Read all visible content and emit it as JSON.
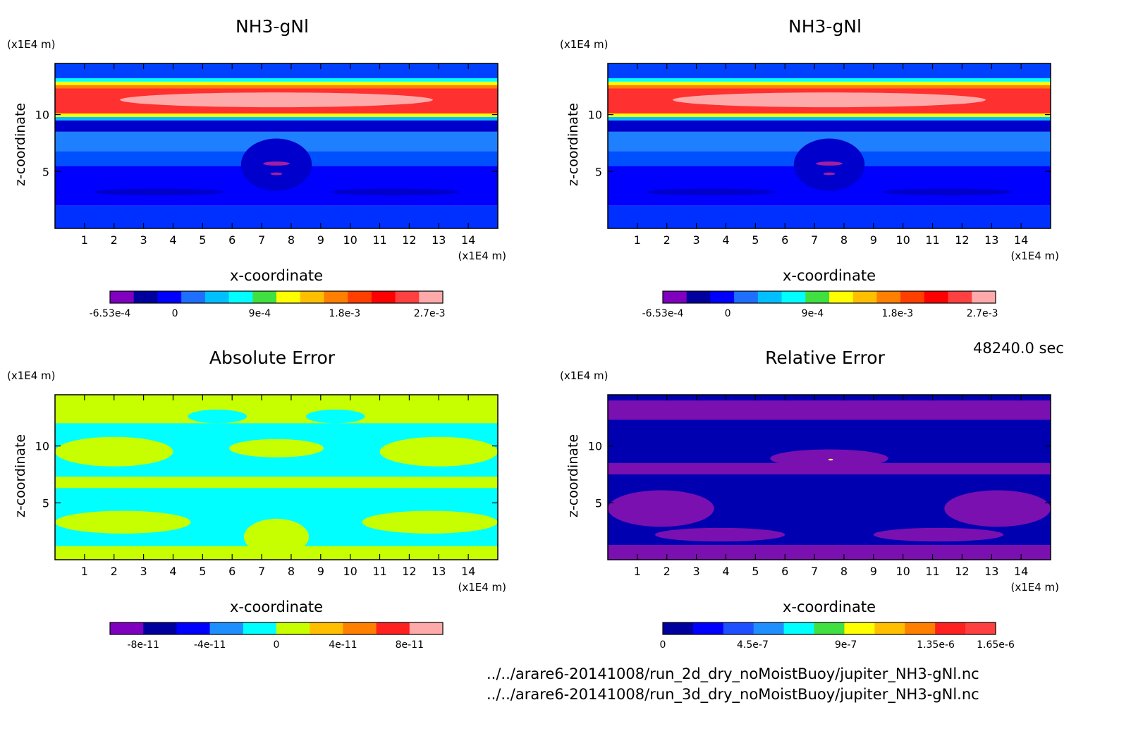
{
  "chart_data": [
    {
      "type": "heatmap",
      "title": "NH3-gNl",
      "xlabel": "x-coordinate",
      "ylabel": "z-coordinate",
      "x_unit": "(x1E4 m)",
      "y_unit": "(x1E4 m)",
      "xlim": [
        0,
        15
      ],
      "ylim": [
        0,
        14.5
      ],
      "x_ticks": [
        1,
        2,
        3,
        4,
        5,
        6,
        7,
        8,
        9,
        10,
        11,
        12,
        13,
        14
      ],
      "y_ticks": [
        5,
        10
      ],
      "colorbar_colors": [
        "#7f00bf",
        "#00009f",
        "#0000ff",
        "#1f6fff",
        "#00bfff",
        "#00ffff",
        "#40e040",
        "#ffff00",
        "#ffbf00",
        "#ff7f00",
        "#ff3f00",
        "#ff0000",
        "#ff4040",
        "#ffaaaa"
      ],
      "colorbar_ticks": [
        {
          "label": "-6.53e-4",
          "pos": 0.0
        },
        {
          "label": "0",
          "pos": 0.195
        },
        {
          "label": "9e-4",
          "pos": 0.45
        },
        {
          "label": "1.8e-3",
          "pos": 0.705
        },
        {
          "label": "2.7e-3",
          "pos": 0.96
        }
      ],
      "bands": [
        {
          "z": [
            0,
            2
          ],
          "color": "#0030ff"
        },
        {
          "z": [
            2,
            5.5
          ],
          "color": "#0000ff"
        },
        {
          "z": [
            5.5,
            6.8
          ],
          "color": "#0050ff"
        },
        {
          "z": [
            6.8,
            8.5
          ],
          "color": "#1f80ff"
        },
        {
          "z": [
            8.5,
            9.5
          ],
          "color": "#0000cc"
        },
        {
          "z": [
            9.5,
            9.8
          ],
          "color": "#00bfff"
        },
        {
          "z": [
            9.8,
            10.1
          ],
          "color": "#ffff00"
        },
        {
          "z": [
            10.1,
            12.3
          ],
          "color": "#ff3030"
        },
        {
          "z": [
            12.3,
            12.6
          ],
          "color": "#ff7f00"
        },
        {
          "z": [
            12.6,
            12.9
          ],
          "color": "#ffff00"
        },
        {
          "z": [
            12.9,
            13.2
          ],
          "color": "#00ffff"
        },
        {
          "z": [
            13.2,
            14.5
          ],
          "color": "#0040ff"
        }
      ],
      "blobs": [
        {
          "x": 7.5,
          "z": 11.3,
          "rx": 5.3,
          "rz": 0.65,
          "color": "#ffaaaa"
        },
        {
          "x": 7.5,
          "z": 5.6,
          "rx": 1.2,
          "rz": 2.3,
          "color": "#0000cc"
        },
        {
          "x": 7.5,
          "z": 5.7,
          "rx": 0.45,
          "rz": 0.18,
          "color": "#a020a0"
        },
        {
          "x": 7.5,
          "z": 4.8,
          "rx": 0.2,
          "rz": 0.12,
          "color": "#a020a0"
        },
        {
          "x": 3.5,
          "z": 3.2,
          "rx": 2.2,
          "rz": 0.3,
          "color": "#0000cc"
        },
        {
          "x": 11.5,
          "z": 3.2,
          "rx": 2.2,
          "rz": 0.3,
          "color": "#0000cc"
        }
      ]
    },
    {
      "type": "heatmap",
      "title": "NH3-gNl",
      "xlabel": "x-coordinate",
      "ylabel": "z-coordinate",
      "x_unit": "(x1E4 m)",
      "y_unit": "(x1E4 m)",
      "xlim": [
        0,
        15
      ],
      "ylim": [
        0,
        14.5
      ],
      "x_ticks": [
        1,
        2,
        3,
        4,
        5,
        6,
        7,
        8,
        9,
        10,
        11,
        12,
        13,
        14
      ],
      "y_ticks": [
        5,
        10
      ],
      "colorbar_colors": [
        "#7f00bf",
        "#00009f",
        "#0000ff",
        "#1f6fff",
        "#00bfff",
        "#00ffff",
        "#40e040",
        "#ffff00",
        "#ffbf00",
        "#ff7f00",
        "#ff3f00",
        "#ff0000",
        "#ff4040",
        "#ffaaaa"
      ],
      "colorbar_ticks": [
        {
          "label": "-6.53e-4",
          "pos": 0.0
        },
        {
          "label": "0",
          "pos": 0.195
        },
        {
          "label": "9e-4",
          "pos": 0.45
        },
        {
          "label": "1.8e-3",
          "pos": 0.705
        },
        {
          "label": "2.7e-3",
          "pos": 0.96
        }
      ],
      "bands": [
        {
          "z": [
            0,
            2
          ],
          "color": "#0030ff"
        },
        {
          "z": [
            2,
            5.5
          ],
          "color": "#0000ff"
        },
        {
          "z": [
            5.5,
            6.8
          ],
          "color": "#0050ff"
        },
        {
          "z": [
            6.8,
            8.5
          ],
          "color": "#1f80ff"
        },
        {
          "z": [
            8.5,
            9.5
          ],
          "color": "#0000cc"
        },
        {
          "z": [
            9.5,
            9.8
          ],
          "color": "#00bfff"
        },
        {
          "z": [
            9.8,
            10.1
          ],
          "color": "#ffff00"
        },
        {
          "z": [
            10.1,
            12.3
          ],
          "color": "#ff3030"
        },
        {
          "z": [
            12.3,
            12.6
          ],
          "color": "#ff7f00"
        },
        {
          "z": [
            12.6,
            12.9
          ],
          "color": "#ffff00"
        },
        {
          "z": [
            12.9,
            13.2
          ],
          "color": "#00ffff"
        },
        {
          "z": [
            13.2,
            14.5
          ],
          "color": "#0040ff"
        }
      ],
      "blobs": [
        {
          "x": 7.5,
          "z": 11.3,
          "rx": 5.3,
          "rz": 0.65,
          "color": "#ffaaaa"
        },
        {
          "x": 7.5,
          "z": 5.6,
          "rx": 1.2,
          "rz": 2.3,
          "color": "#0000cc"
        },
        {
          "x": 7.5,
          "z": 5.7,
          "rx": 0.45,
          "rz": 0.18,
          "color": "#a020a0"
        },
        {
          "x": 7.5,
          "z": 4.8,
          "rx": 0.2,
          "rz": 0.12,
          "color": "#a020a0"
        },
        {
          "x": 3.5,
          "z": 3.2,
          "rx": 2.2,
          "rz": 0.3,
          "color": "#0000cc"
        },
        {
          "x": 11.5,
          "z": 3.2,
          "rx": 2.2,
          "rz": 0.3,
          "color": "#0000cc"
        }
      ]
    },
    {
      "type": "heatmap",
      "title": "Absolute Error",
      "xlabel": "x-coordinate",
      "ylabel": "z-coordinate",
      "x_unit": "(x1E4 m)",
      "y_unit": "(x1E4 m)",
      "xlim": [
        0,
        15
      ],
      "ylim": [
        0,
        14.5
      ],
      "x_ticks": [
        1,
        2,
        3,
        4,
        5,
        6,
        7,
        8,
        9,
        10,
        11,
        12,
        13,
        14
      ],
      "y_ticks": [
        5,
        10
      ],
      "colorbar_colors": [
        "#7f00bf",
        "#00009f",
        "#0000ff",
        "#1f8fff",
        "#00ffff",
        "#c8ff00",
        "#ffbf00",
        "#ff7f00",
        "#ff2020",
        "#ffaaaa"
      ],
      "colorbar_ticks": [
        {
          "label": "-8e-11",
          "pos": 0.1
        },
        {
          "label": "-4e-11",
          "pos": 0.3
        },
        {
          "label": "0",
          "pos": 0.5
        },
        {
          "label": "4e-11",
          "pos": 0.7
        },
        {
          "label": "8e-11",
          "pos": 0.9
        }
      ],
      "bands": [
        {
          "z": [
            0,
            14.5
          ],
          "color": "#00ffff"
        },
        {
          "z": [
            12.0,
            14.5
          ],
          "color": "#c8ff00"
        },
        {
          "z": [
            6.3,
            7.3
          ],
          "color": "#c8ff00"
        },
        {
          "z": [
            0,
            1.2
          ],
          "color": "#c8ff00"
        }
      ],
      "blobs": [
        {
          "x": 2.0,
          "z": 9.5,
          "rx": 2.0,
          "rz": 1.3,
          "color": "#c8ff00"
        },
        {
          "x": 13.0,
          "z": 9.5,
          "rx": 2.0,
          "rz": 1.3,
          "color": "#c8ff00"
        },
        {
          "x": 7.5,
          "z": 9.8,
          "rx": 1.6,
          "rz": 0.8,
          "color": "#c8ff00"
        },
        {
          "x": 2.3,
          "z": 3.3,
          "rx": 2.3,
          "rz": 1.0,
          "color": "#c8ff00"
        },
        {
          "x": 12.7,
          "z": 3.3,
          "rx": 2.3,
          "rz": 1.0,
          "color": "#c8ff00"
        },
        {
          "x": 7.5,
          "z": 2.0,
          "rx": 1.1,
          "rz": 1.6,
          "color": "#c8ff00"
        },
        {
          "x": 5.5,
          "z": 12.6,
          "rx": 1.0,
          "rz": 0.6,
          "color": "#00ffff"
        },
        {
          "x": 9.5,
          "z": 12.6,
          "rx": 1.0,
          "rz": 0.6,
          "color": "#00ffff"
        }
      ]
    },
    {
      "type": "heatmap",
      "title": "Relative Error",
      "xlabel": "x-coordinate",
      "ylabel": "z-coordinate",
      "x_unit": "(x1E4 m)",
      "y_unit": "(x1E4 m)",
      "xlim": [
        0,
        15
      ],
      "ylim": [
        0,
        14.5
      ],
      "x_ticks": [
        1,
        2,
        3,
        4,
        5,
        6,
        7,
        8,
        9,
        10,
        11,
        12,
        13,
        14
      ],
      "y_ticks": [
        5,
        10
      ],
      "colorbar_colors": [
        "#00009f",
        "#0000ff",
        "#1f50ff",
        "#1f8fff",
        "#00ffff",
        "#40e040",
        "#ffff00",
        "#ffbf00",
        "#ff7f00",
        "#ff2020",
        "#ff4040"
      ],
      "colorbar_ticks": [
        {
          "label": "0",
          "pos": 0.0
        },
        {
          "label": "4.5e-7",
          "pos": 0.27
        },
        {
          "label": "9e-7",
          "pos": 0.55
        },
        {
          "label": "1.35e-6",
          "pos": 0.82
        },
        {
          "label": "1.65e-6",
          "pos": 1.0
        }
      ],
      "bands": [
        {
          "z": [
            0,
            14.5
          ],
          "color": "#0000b0"
        },
        {
          "z": [
            12.3,
            14.0
          ],
          "color": "#7a10b0"
        },
        {
          "z": [
            7.5,
            8.5
          ],
          "color": "#7a10b0"
        },
        {
          "z": [
            0,
            1.3
          ],
          "color": "#7a10b0"
        }
      ],
      "blobs": [
        {
          "x": 1.8,
          "z": 4.5,
          "rx": 1.8,
          "rz": 1.6,
          "color": "#7a10b0"
        },
        {
          "x": 13.2,
          "z": 4.5,
          "rx": 1.8,
          "rz": 1.6,
          "color": "#7a10b0"
        },
        {
          "x": 7.5,
          "z": 8.9,
          "rx": 2.0,
          "rz": 0.8,
          "color": "#7a10b0"
        },
        {
          "x": 7.5,
          "z": 5.0,
          "rx": 0.7,
          "rz": 2.5,
          "color": "#0000b0"
        },
        {
          "x": 3.8,
          "z": 2.2,
          "rx": 2.2,
          "rz": 0.6,
          "color": "#7a10b0"
        },
        {
          "x": 11.2,
          "z": 2.2,
          "rx": 2.2,
          "rz": 0.6,
          "color": "#7a10b0"
        },
        {
          "x": 7.55,
          "z": 8.8,
          "rx": 0.08,
          "rz": 0.08,
          "color": "#ffff60"
        }
      ]
    }
  ],
  "time_label": "48240.0 sec",
  "footer": {
    "line1": "../../arare6-20141008/run_2d_dry_noMoistBuoy/jupiter_NH3-gNl.nc",
    "line2": "../../arare6-20141008/run_3d_dry_noMoistBuoy/jupiter_NH3-gNl.nc"
  }
}
